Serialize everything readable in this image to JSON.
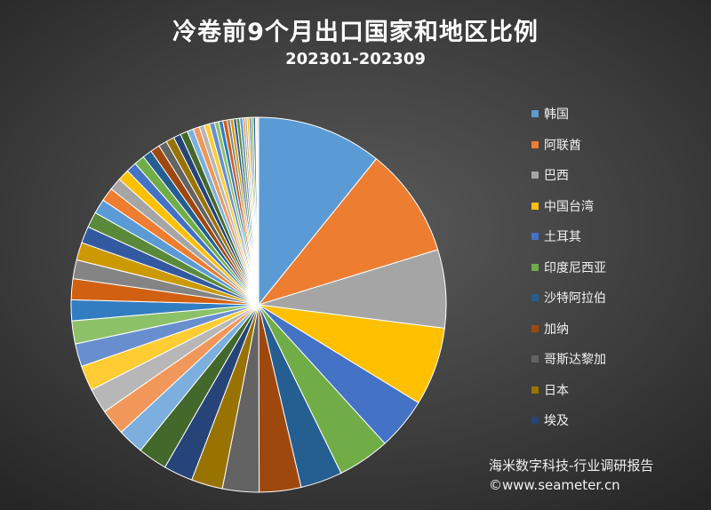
{
  "chart_data": {
    "type": "pie",
    "title": "冷卷前9个月出口国家和地区比例",
    "subtitle": "202301-202309",
    "legend": [
      "韩国",
      "阿联酋",
      "巴西",
      "中国台湾",
      "土耳其",
      "印度尼西亚",
      "沙特阿拉伯",
      "加纳",
      "哥斯达黎加",
      "日本",
      "埃及"
    ],
    "values": [
      12.0,
      10.5,
      7.5,
      7.5,
      5.0,
      5.0,
      4.0,
      4.0,
      3.5,
      3.0,
      2.8,
      2.8,
      2.5,
      2.5,
      2.4,
      2.4,
      2.2,
      2.2,
      2.0,
      2.0,
      1.8,
      1.7,
      1.6,
      1.5,
      1.4,
      1.3,
      1.2,
      1.1,
      1.0,
      1.0,
      0.9,
      0.9,
      0.8,
      0.8,
      0.7,
      0.7,
      0.6,
      0.6,
      0.5,
      0.5,
      0.5,
      0.4,
      0.4,
      0.4,
      0.3,
      0.3,
      0.3,
      0.3,
      0.3,
      0.2,
      0.2,
      0.2,
      0.2,
      0.2,
      0.2,
      0.1,
      0.1,
      0.1
    ],
    "palette": [
      "#5b9bd5",
      "#ed7d31",
      "#a5a5a5",
      "#ffc000",
      "#4472c4",
      "#70ad47",
      "#255e91",
      "#9e480e",
      "#636363",
      "#997300",
      "#264478",
      "#43682b",
      "#7cafdd",
      "#f1975a",
      "#b7b7b7",
      "#ffcd33",
      "#698ed0",
      "#8cc168",
      "#327dc2",
      "#d26012",
      "#848484",
      "#cc9a00",
      "#335aa1",
      "#5a8a39"
    ],
    "legend_placement": "right"
  },
  "watermark": {
    "line1": "海米数字科技-行业调研报告",
    "line2": "©www.seameter.cn"
  }
}
